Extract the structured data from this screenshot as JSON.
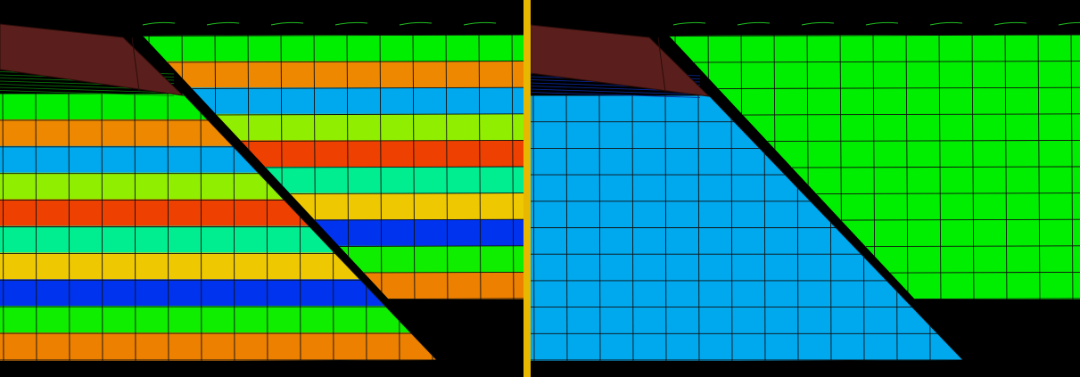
{
  "scene": {
    "background_color": "#000000",
    "divider_color": "#E8B800",
    "mesh_line_color": "#101010",
    "indenter_color": "#5A1F1C",
    "indenter_dark_line_color": "#2A0C0A"
  },
  "left_panel": {
    "description_visible": "",
    "hanging_wall_bands": [
      "#00EE00",
      "#EE8800",
      "#00A8EE",
      "#90EE00",
      "#EE4000",
      "#00EE90",
      "#EEC800",
      "#0033EE",
      "#10EE00",
      "#EE8000"
    ],
    "footwall_bands": [
      "#00EE00",
      "#EE8800",
      "#00A8EE",
      "#90EE00",
      "#EE4000",
      "#00EE90",
      "#EEC800",
      "#0033EE",
      "#10EE00",
      "#EE8000"
    ]
  },
  "right_panel": {
    "hanging_wall_color": "#00EE00",
    "footwall_color": "#00A8EE"
  }
}
